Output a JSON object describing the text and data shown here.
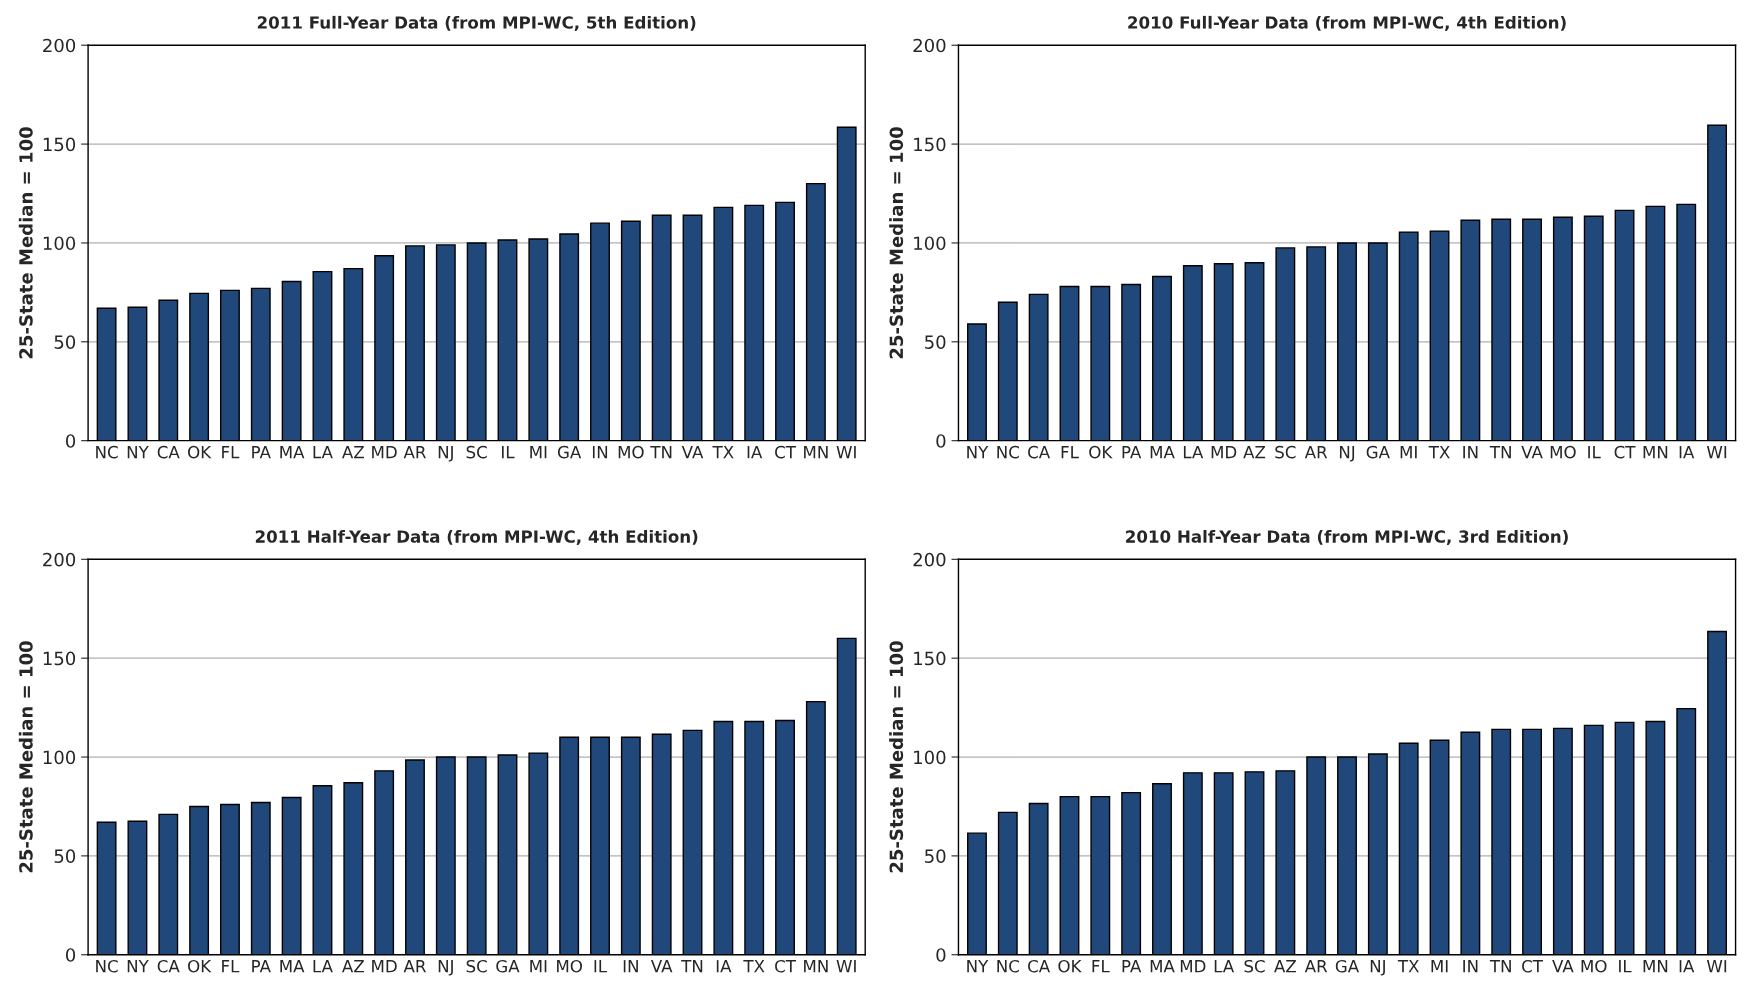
{
  "chart_data": [
    {
      "type": "bar",
      "title": "2011 Full-Year Data (from MPI-WC, 5th Edition)",
      "ylabel": "25-State Median = 100",
      "categories": [
        "NC",
        "NY",
        "CA",
        "OK",
        "FL",
        "PA",
        "MA",
        "LA",
        "AZ",
        "MD",
        "AR",
        "NJ",
        "SC",
        "IL",
        "MI",
        "GA",
        "IN",
        "MO",
        "TN",
        "VA",
        "TX",
        "IA",
        "CT",
        "MN",
        "WI"
      ],
      "values": [
        67,
        67.5,
        71,
        74.5,
        76,
        77,
        80.5,
        85.5,
        87,
        93.5,
        98.5,
        99,
        100,
        101.5,
        102,
        104.5,
        110,
        111,
        114,
        114,
        118,
        119,
        120.5,
        130,
        158.5
      ],
      "color": "#21487a",
      "ylim": [
        0,
        200
      ],
      "yticks": [
        0,
        50,
        100,
        150,
        200
      ],
      "grid": "y"
    },
    {
      "type": "bar",
      "title": "2010 Full-Year Data (from MPI-WC, 4th Edition)",
      "ylabel": "25-State Median = 100",
      "categories": [
        "NY",
        "NC",
        "CA",
        "FL",
        "OK",
        "PA",
        "MA",
        "LA",
        "MD",
        "AZ",
        "SC",
        "AR",
        "NJ",
        "GA",
        "MI",
        "TX",
        "IN",
        "TN",
        "VA",
        "MO",
        "IL",
        "CT",
        "MN",
        "IA",
        "WI"
      ],
      "values": [
        59,
        70,
        74,
        78,
        78,
        79,
        83,
        88.5,
        89.5,
        90,
        97.5,
        98,
        100,
        100,
        105.5,
        106,
        111.5,
        112,
        112,
        113,
        113.5,
        116.5,
        118.5,
        119.5,
        159.5
      ],
      "color": "#21487a",
      "ylim": [
        0,
        200
      ],
      "yticks": [
        0,
        50,
        100,
        150,
        200
      ],
      "grid": "y"
    },
    {
      "type": "bar",
      "title": "2011 Half-Year Data (from MPI-WC, 4th Edition)",
      "ylabel": "25-State Median = 100",
      "categories": [
        "NC",
        "NY",
        "CA",
        "OK",
        "FL",
        "PA",
        "MA",
        "LA",
        "AZ",
        "MD",
        "AR",
        "NJ",
        "SC",
        "GA",
        "MI",
        "MO",
        "IL",
        "IN",
        "VA",
        "TN",
        "IA",
        "TX",
        "CT",
        "MN",
        "WI"
      ],
      "values": [
        67,
        67.5,
        71,
        75,
        76,
        77,
        79.5,
        85.5,
        87,
        93,
        98.5,
        100,
        100,
        101,
        102,
        110,
        110,
        110,
        111.5,
        113.5,
        118,
        118,
        118.5,
        128,
        160
      ],
      "color": "#21487a",
      "ylim": [
        0,
        200
      ],
      "yticks": [
        0,
        50,
        100,
        150,
        200
      ],
      "grid": "y"
    },
    {
      "type": "bar",
      "title": "2010 Half-Year Data (from MPI-WC, 3rd Edition)",
      "ylabel": "25-State Median = 100",
      "categories": [
        "NY",
        "NC",
        "CA",
        "OK",
        "FL",
        "PA",
        "MA",
        "MD",
        "LA",
        "SC",
        "AZ",
        "AR",
        "GA",
        "NJ",
        "TX",
        "MI",
        "IN",
        "TN",
        "CT",
        "VA",
        "MO",
        "IL",
        "MN",
        "IA",
        "WI"
      ],
      "values": [
        61.5,
        72,
        76.5,
        80,
        80,
        82,
        86.5,
        92,
        92,
        92.5,
        93,
        100,
        100,
        101.5,
        107,
        108.5,
        112.5,
        114,
        114,
        114.5,
        116,
        117.5,
        118,
        124.5,
        163.5
      ],
      "color": "#21487a",
      "ylim": [
        0,
        200
      ],
      "yticks": [
        0,
        50,
        100,
        150,
        200
      ],
      "grid": "y"
    }
  ]
}
